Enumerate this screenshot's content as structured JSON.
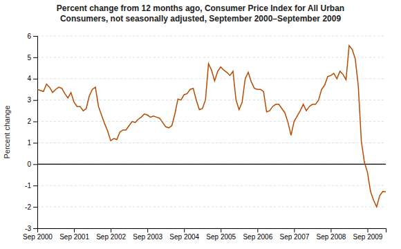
{
  "chart_data": {
    "type": "line",
    "title": "Percent change from 12 months ago, Consumer Price Index for All Urban\nConsumers, not seasonally adjusted, September 2000–September 2009",
    "ylabel": "Percent change",
    "color": "#b84a00",
    "ylim": [
      -3,
      6
    ],
    "yticks": [
      -3,
      -2,
      -1,
      0,
      1,
      2,
      3,
      4,
      5,
      6
    ],
    "grid": true,
    "categories": [
      "Sep 2000",
      null,
      null,
      null,
      null,
      null,
      null,
      null,
      null,
      null,
      null,
      null,
      "Sep 2001",
      null,
      null,
      null,
      null,
      null,
      null,
      null,
      null,
      null,
      null,
      null,
      "Sep 2002",
      null,
      null,
      null,
      null,
      null,
      null,
      null,
      null,
      null,
      null,
      null,
      "Sep 2003",
      null,
      null,
      null,
      null,
      null,
      null,
      null,
      null,
      null,
      null,
      null,
      "Sep 2004",
      null,
      null,
      null,
      null,
      null,
      null,
      null,
      null,
      null,
      null,
      null,
      "Sep 2005",
      null,
      null,
      null,
      null,
      null,
      null,
      null,
      null,
      null,
      null,
      null,
      "Sep 2006",
      null,
      null,
      null,
      null,
      null,
      null,
      null,
      null,
      null,
      null,
      null,
      "Sep 2007",
      null,
      null,
      null,
      null,
      null,
      null,
      null,
      null,
      null,
      null,
      null,
      "Sep 2008",
      null,
      null,
      null,
      null,
      null,
      null,
      null,
      null,
      null,
      null,
      null,
      "Sep 2009",
      null,
      null,
      null,
      null,
      null,
      null
    ],
    "values": [
      3.5,
      3.45,
      3.4,
      3.75,
      3.6,
      3.35,
      3.5,
      3.6,
      3.55,
      3.3,
      3.1,
      3.35,
      2.9,
      2.7,
      2.7,
      2.5,
      2.6,
      3.2,
      3.5,
      3.6,
      2.7,
      2.3,
      1.9,
      1.55,
      1.1,
      1.2,
      1.15,
      1.5,
      1.6,
      1.6,
      1.8,
      2.0,
      1.95,
      2.1,
      2.2,
      2.35,
      2.3,
      2.2,
      2.25,
      2.2,
      2.15,
      1.95,
      1.75,
      1.7,
      1.8,
      2.35,
      3.05,
      3.0,
      3.25,
      3.3,
      3.5,
      3.55,
      3.0,
      2.55,
      2.6,
      3.0,
      4.7,
      4.4,
      3.9,
      4.35,
      4.55,
      4.4,
      4.3,
      4.15,
      4.35,
      3.0,
      2.55,
      2.9,
      4.0,
      4.3,
      3.85,
      3.55,
      3.5,
      3.5,
      3.4,
      2.45,
      2.5,
      2.7,
      2.8,
      2.8,
      2.6,
      2.4,
      1.95,
      1.35,
      2.0,
      2.25,
      2.5,
      2.8,
      2.5,
      2.7,
      2.8,
      2.8,
      3.0,
      3.5,
      3.7,
      4.1,
      4.15,
      4.25,
      4.0,
      4.35,
      4.2,
      3.95,
      5.55,
      5.37,
      4.94,
      3.66,
      1.07,
      0.09,
      -0.38,
      -1.28,
      -1.69,
      -2.0,
      -1.48,
      -1.28,
      -1.29
    ]
  }
}
